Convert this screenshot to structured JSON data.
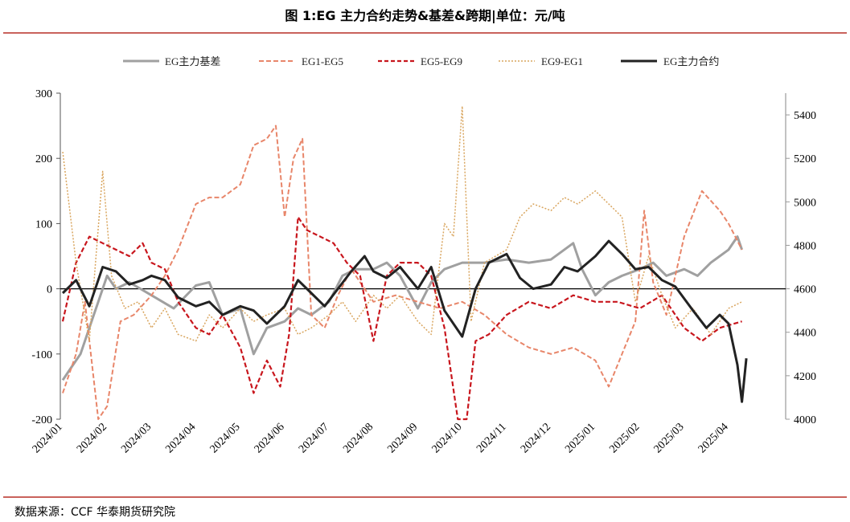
{
  "page": {
    "title": "图 1:EG 主力合约走势&基差&跨期|单位：元/吨",
    "source": "数据来源：CCF  华泰期货研究院"
  },
  "chart_data": {
    "type": "line",
    "title": "图 1:EG 主力合约走势&基差&跨期|单位：元/吨",
    "x_ticks": [
      "2024/01",
      "2024/02",
      "2024/03",
      "2024/04",
      "2024/05",
      "2024/06",
      "2024/07",
      "2024/08",
      "2024/09",
      "2024/10",
      "2024/11",
      "2024/12",
      "2025/01",
      "2025/02",
      "2025/03",
      "2025/04"
    ],
    "left_axis": {
      "min": -200,
      "max": 300,
      "ticks": [
        300,
        200,
        100,
        0,
        -100,
        -200
      ]
    },
    "right_axis": {
      "min": 4000,
      "max": 5500,
      "ticks": [
        5400,
        5200,
        5000,
        4800,
        4600,
        4400,
        4200,
        4000
      ]
    },
    "legend_position": "top",
    "series": [
      {
        "name": "EG主力基差",
        "axis": "left",
        "color": "#a0a0a0",
        "style": "solid",
        "width": 3,
        "points": [
          [
            0,
            -140
          ],
          [
            0.2,
            -120
          ],
          [
            0.4,
            -100
          ],
          [
            0.6,
            -60
          ],
          [
            0.8,
            -20
          ],
          [
            1,
            20
          ],
          [
            1.2,
            0
          ],
          [
            1.5,
            10
          ],
          [
            2,
            -10
          ],
          [
            2.5,
            -30
          ],
          [
            3,
            5
          ],
          [
            3.3,
            10
          ],
          [
            3.6,
            -40
          ],
          [
            4,
            -30
          ],
          [
            4.3,
            -100
          ],
          [
            4.6,
            -60
          ],
          [
            5,
            -50
          ],
          [
            5.3,
            -30
          ],
          [
            5.6,
            -40
          ],
          [
            6,
            -20
          ],
          [
            6.3,
            20
          ],
          [
            6.6,
            30
          ],
          [
            7,
            30
          ],
          [
            7.3,
            40
          ],
          [
            7.6,
            20
          ],
          [
            8,
            -30
          ],
          [
            8.3,
            10
          ],
          [
            8.6,
            30
          ],
          [
            9,
            40
          ],
          [
            9.5,
            40
          ],
          [
            10,
            45
          ],
          [
            10.5,
            40
          ],
          [
            11,
            45
          ],
          [
            11.5,
            70
          ],
          [
            11.7,
            30
          ],
          [
            12,
            -10
          ],
          [
            12.3,
            10
          ],
          [
            12.6,
            20
          ],
          [
            13,
            30
          ],
          [
            13.3,
            40
          ],
          [
            13.6,
            20
          ],
          [
            14,
            30
          ],
          [
            14.3,
            20
          ],
          [
            14.6,
            40
          ],
          [
            15,
            60
          ],
          [
            15.2,
            80
          ],
          [
            15.3,
            60
          ]
        ]
      },
      {
        "name": "EG1-EG5",
        "axis": "left",
        "color": "#e8866a",
        "style": "dashed",
        "width": 2,
        "points": [
          [
            0,
            -160
          ],
          [
            0.3,
            -100
          ],
          [
            0.5,
            -20
          ],
          [
            0.8,
            -200
          ],
          [
            1,
            -180
          ],
          [
            1.3,
            -50
          ],
          [
            1.6,
            -40
          ],
          [
            2,
            -10
          ],
          [
            2.3,
            20
          ],
          [
            2.6,
            60
          ],
          [
            3,
            130
          ],
          [
            3.3,
            140
          ],
          [
            3.6,
            140
          ],
          [
            4,
            160
          ],
          [
            4.3,
            220
          ],
          [
            4.6,
            230
          ],
          [
            4.8,
            250
          ],
          [
            5,
            110
          ],
          [
            5.2,
            200
          ],
          [
            5.4,
            230
          ],
          [
            5.6,
            -40
          ],
          [
            5.9,
            -60
          ],
          [
            6.2,
            -10
          ],
          [
            6.5,
            30
          ],
          [
            7,
            -20
          ],
          [
            7.5,
            -10
          ],
          [
            8,
            -20
          ],
          [
            8.5,
            -30
          ],
          [
            9,
            -20
          ],
          [
            9.5,
            -40
          ],
          [
            10,
            -70
          ],
          [
            10.5,
            -90
          ],
          [
            11,
            -100
          ],
          [
            11.5,
            -90
          ],
          [
            12,
            -110
          ],
          [
            12.3,
            -150
          ],
          [
            12.6,
            -100
          ],
          [
            12.9,
            -50
          ],
          [
            13.1,
            120
          ],
          [
            13.3,
            10
          ],
          [
            13.6,
            -40
          ],
          [
            14,
            80
          ],
          [
            14.4,
            150
          ],
          [
            14.8,
            120
          ],
          [
            15,
            100
          ],
          [
            15.3,
            60
          ]
        ]
      },
      {
        "name": "EG5-EG9",
        "axis": "left",
        "color": "#c8161d",
        "style": "dashed",
        "width": 2.2,
        "points": [
          [
            0,
            -50
          ],
          [
            0.3,
            40
          ],
          [
            0.6,
            80
          ],
          [
            0.9,
            70
          ],
          [
            1.2,
            60
          ],
          [
            1.5,
            50
          ],
          [
            1.8,
            70
          ],
          [
            2,
            40
          ],
          [
            2.3,
            30
          ],
          [
            2.6,
            -20
          ],
          [
            3,
            -60
          ],
          [
            3.3,
            -70
          ],
          [
            3.6,
            -40
          ],
          [
            4,
            -90
          ],
          [
            4.3,
            -160
          ],
          [
            4.6,
            -110
          ],
          [
            4.9,
            -150
          ],
          [
            5.1,
            -70
          ],
          [
            5.3,
            110
          ],
          [
            5.5,
            90
          ],
          [
            5.8,
            80
          ],
          [
            6.1,
            70
          ],
          [
            6.4,
            40
          ],
          [
            6.7,
            20
          ],
          [
            7,
            -80
          ],
          [
            7.3,
            20
          ],
          [
            7.6,
            40
          ],
          [
            8,
            40
          ],
          [
            8.3,
            20
          ],
          [
            8.6,
            -60
          ],
          [
            8.9,
            -200
          ],
          [
            9.1,
            -200
          ],
          [
            9.3,
            -80
          ],
          [
            9.6,
            -70
          ],
          [
            10,
            -40
          ],
          [
            10.5,
            -20
          ],
          [
            11,
            -30
          ],
          [
            11.5,
            -10
          ],
          [
            12,
            -20
          ],
          [
            12.5,
            -20
          ],
          [
            13,
            -30
          ],
          [
            13.5,
            -10
          ],
          [
            14,
            -60
          ],
          [
            14.4,
            -80
          ],
          [
            14.8,
            -60
          ],
          [
            15.3,
            -50
          ]
        ]
      },
      {
        "name": "EG9-EG1",
        "axis": "left",
        "color": "#d9a55e",
        "style": "dotted",
        "width": 1.5,
        "points": [
          [
            0,
            210
          ],
          [
            0.3,
            40
          ],
          [
            0.6,
            -80
          ],
          [
            0.9,
            180
          ],
          [
            1.1,
            20
          ],
          [
            1.4,
            -30
          ],
          [
            1.7,
            -20
          ],
          [
            2,
            -60
          ],
          [
            2.3,
            -30
          ],
          [
            2.6,
            -70
          ],
          [
            3,
            -80
          ],
          [
            3.3,
            -40
          ],
          [
            3.6,
            -60
          ],
          [
            4,
            -30
          ],
          [
            4.3,
            -50
          ],
          [
            4.6,
            -40
          ],
          [
            5,
            -30
          ],
          [
            5.3,
            -70
          ],
          [
            5.6,
            -60
          ],
          [
            6,
            -40
          ],
          [
            6.3,
            -20
          ],
          [
            6.6,
            -50
          ],
          [
            7,
            -10
          ],
          [
            7.3,
            -30
          ],
          [
            7.6,
            -10
          ],
          [
            8,
            -50
          ],
          [
            8.3,
            -70
          ],
          [
            8.6,
            100
          ],
          [
            8.8,
            80
          ],
          [
            9,
            280
          ],
          [
            9.2,
            -50
          ],
          [
            9.5,
            40
          ],
          [
            10,
            60
          ],
          [
            10.3,
            110
          ],
          [
            10.6,
            130
          ],
          [
            11,
            120
          ],
          [
            11.3,
            140
          ],
          [
            11.6,
            130
          ],
          [
            12,
            150
          ],
          [
            12.3,
            130
          ],
          [
            12.6,
            110
          ],
          [
            12.9,
            -20
          ],
          [
            13.2,
            50
          ],
          [
            13.5,
            -10
          ],
          [
            13.8,
            -60
          ],
          [
            14.2,
            -30
          ],
          [
            14.6,
            -70
          ],
          [
            15,
            -30
          ],
          [
            15.3,
            -20
          ]
        ]
      },
      {
        "name": "EG主力合约",
        "axis": "right",
        "color": "#222222",
        "style": "solid",
        "width": 3,
        "points": [
          [
            0,
            4580
          ],
          [
            0.3,
            4640
          ],
          [
            0.6,
            4520
          ],
          [
            0.9,
            4700
          ],
          [
            1.2,
            4680
          ],
          [
            1.5,
            4620
          ],
          [
            1.8,
            4640
          ],
          [
            2,
            4660
          ],
          [
            2.3,
            4640
          ],
          [
            2.6,
            4560
          ],
          [
            3,
            4520
          ],
          [
            3.3,
            4540
          ],
          [
            3.6,
            4480
          ],
          [
            4,
            4520
          ],
          [
            4.3,
            4500
          ],
          [
            4.6,
            4440
          ],
          [
            5,
            4520
          ],
          [
            5.3,
            4640
          ],
          [
            5.6,
            4580
          ],
          [
            5.9,
            4520
          ],
          [
            6.2,
            4600
          ],
          [
            6.5,
            4680
          ],
          [
            6.8,
            4750
          ],
          [
            7,
            4680
          ],
          [
            7.3,
            4650
          ],
          [
            7.6,
            4700
          ],
          [
            8,
            4600
          ],
          [
            8.3,
            4700
          ],
          [
            8.6,
            4500
          ],
          [
            9,
            4380
          ],
          [
            9.3,
            4600
          ],
          [
            9.6,
            4720
          ],
          [
            10,
            4760
          ],
          [
            10.3,
            4650
          ],
          [
            10.6,
            4600
          ],
          [
            11,
            4620
          ],
          [
            11.3,
            4700
          ],
          [
            11.6,
            4680
          ],
          [
            12,
            4750
          ],
          [
            12.3,
            4820
          ],
          [
            12.6,
            4760
          ],
          [
            12.9,
            4690
          ],
          [
            13.2,
            4700
          ],
          [
            13.5,
            4640
          ],
          [
            13.8,
            4610
          ],
          [
            14.2,
            4500
          ],
          [
            14.5,
            4420
          ],
          [
            14.8,
            4480
          ],
          [
            15,
            4440
          ],
          [
            15.2,
            4250
          ],
          [
            15.3,
            4080
          ],
          [
            15.4,
            4280
          ]
        ]
      }
    ]
  },
  "legend": {
    "basis": "EG主力基差",
    "s1_5": "EG1-EG5",
    "s5_9": "EG5-EG9",
    "s9_1": "EG9-EG1",
    "main": "EG主力合约"
  }
}
